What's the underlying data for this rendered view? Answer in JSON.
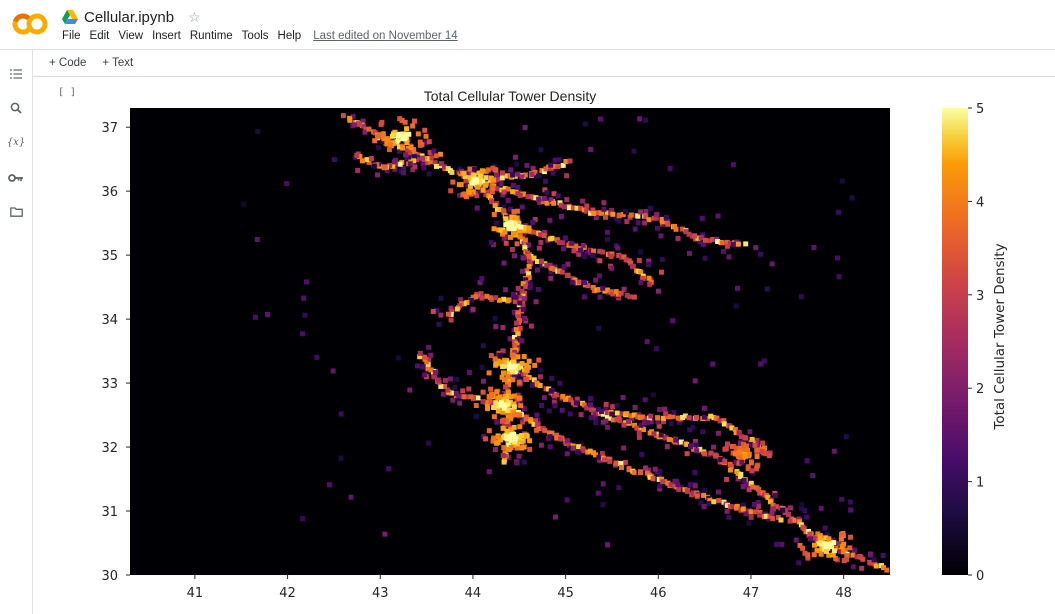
{
  "app": {
    "logo_text": "CO",
    "notebook_title": "Cellular.ipynb",
    "menu": [
      "File",
      "Edit",
      "View",
      "Insert",
      "Runtime",
      "Tools",
      "Help"
    ],
    "last_edited": "Last edited on November 14"
  },
  "toolbar": {
    "code_label": "+ Code",
    "text_label": "+ Text"
  },
  "rail": {
    "icons": [
      "toc-icon",
      "search-icon",
      "variables-icon",
      "key-icon",
      "folder-icon"
    ],
    "variables_label": "{x}"
  },
  "cell": {
    "bracket": "[ ]"
  },
  "chart_data": {
    "type": "heatmap",
    "title": "Total Cellular Tower Density",
    "xlim": [
      40.3,
      48.5
    ],
    "ylim": [
      30.0,
      37.3
    ],
    "x_ticks": [
      41,
      42,
      43,
      44,
      45,
      46,
      47,
      48
    ],
    "y_ticks": [
      30,
      31,
      32,
      33,
      34,
      35,
      36,
      37
    ],
    "colorbar": {
      "label": "Total Cellular Tower Density",
      "ticks": [
        0,
        1,
        2,
        3,
        4,
        5
      ],
      "range": [
        0,
        5
      ],
      "colormap": "inferno"
    },
    "background_color": "#000004",
    "hotspots": [
      {
        "x": 44.0,
        "y": 36.2,
        "value": 5
      },
      {
        "x": 44.4,
        "y": 35.5,
        "value": 5
      },
      {
        "x": 44.4,
        "y": 33.3,
        "value": 5
      },
      {
        "x": 44.3,
        "y": 32.7,
        "value": 5
      },
      {
        "x": 44.4,
        "y": 32.2,
        "value": 5
      },
      {
        "x": 47.8,
        "y": 30.5,
        "value": 5
      },
      {
        "x": 43.2,
        "y": 36.9,
        "value": 5
      },
      {
        "x": 46.9,
        "y": 31.9,
        "value": 4
      }
    ],
    "corridors": [
      [
        [
          42.6,
          37.2
        ],
        [
          43.1,
          36.8
        ],
        [
          43.5,
          36.5
        ],
        [
          44.0,
          36.2
        ],
        [
          44.4,
          35.5
        ],
        [
          44.6,
          35.0
        ],
        [
          44.5,
          34.3
        ],
        [
          44.4,
          33.3
        ],
        [
          44.3,
          32.7
        ],
        [
          44.4,
          32.2
        ],
        [
          44.3,
          31.8
        ]
      ],
      [
        [
          44.4,
          33.3
        ],
        [
          44.8,
          32.9
        ],
        [
          45.3,
          32.6
        ],
        [
          46.0,
          32.2
        ],
        [
          46.6,
          31.9
        ],
        [
          47.1,
          31.3
        ],
        [
          47.6,
          30.7
        ],
        [
          47.8,
          30.5
        ],
        [
          48.5,
          30.1
        ]
      ],
      [
        [
          44.3,
          32.7
        ],
        [
          45.0,
          32.1
        ],
        [
          45.5,
          31.8
        ],
        [
          46.2,
          31.4
        ],
        [
          46.8,
          31.1
        ],
        [
          47.3,
          30.9
        ]
      ],
      [
        [
          44.0,
          36.2
        ],
        [
          44.6,
          36.3
        ],
        [
          45.0,
          36.5
        ]
      ],
      [
        [
          44.0,
          36.2
        ],
        [
          44.7,
          35.9
        ],
        [
          45.3,
          35.7
        ],
        [
          46.0,
          35.6
        ],
        [
          46.4,
          35.3
        ],
        [
          46.9,
          35.2
        ]
      ],
      [
        [
          44.4,
          35.5
        ],
        [
          45.0,
          35.2
        ],
        [
          45.6,
          35.0
        ],
        [
          45.9,
          34.6
        ]
      ],
      [
        [
          44.6,
          35.0
        ],
        [
          45.3,
          34.5
        ],
        [
          45.7,
          34.4
        ]
      ],
      [
        [
          44.3,
          32.7
        ],
        [
          43.7,
          32.9
        ],
        [
          43.4,
          33.5
        ]
      ],
      [
        [
          43.6,
          36.6
        ],
        [
          43.0,
          36.4
        ],
        [
          42.7,
          36.6
        ]
      ],
      [
        [
          45.3,
          32.6
        ],
        [
          45.9,
          32.5
        ],
        [
          46.6,
          32.5
        ],
        [
          47.1,
          32.0
        ]
      ],
      [
        [
          44.5,
          34.3
        ],
        [
          44.0,
          34.4
        ],
        [
          43.7,
          34.1
        ]
      ]
    ]
  }
}
